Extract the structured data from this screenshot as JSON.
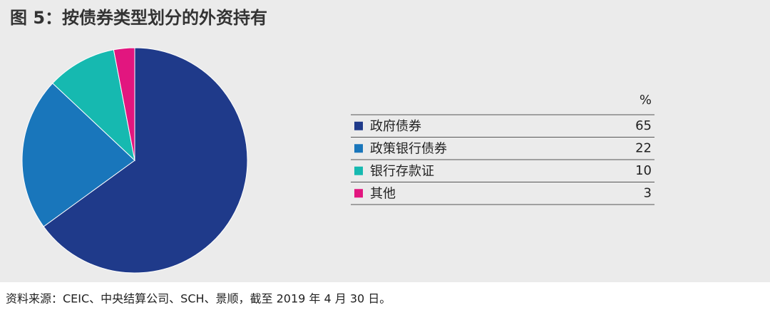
{
  "chart_data": {
    "type": "pie",
    "title": "图 5：按债券类型划分的外资持有",
    "unit_header": "%",
    "categories": [
      "政府债券",
      "政策银行债券",
      "银行存款证",
      "其他"
    ],
    "values": [
      65,
      22,
      10,
      3
    ],
    "colors": [
      "#1f3a8a",
      "#1976bb",
      "#16b9b0",
      "#e2167f"
    ],
    "source": "资料来源：CEIC、中央结算公司、SCH、景顺，截至 2019 年 4 月 30 日。"
  }
}
